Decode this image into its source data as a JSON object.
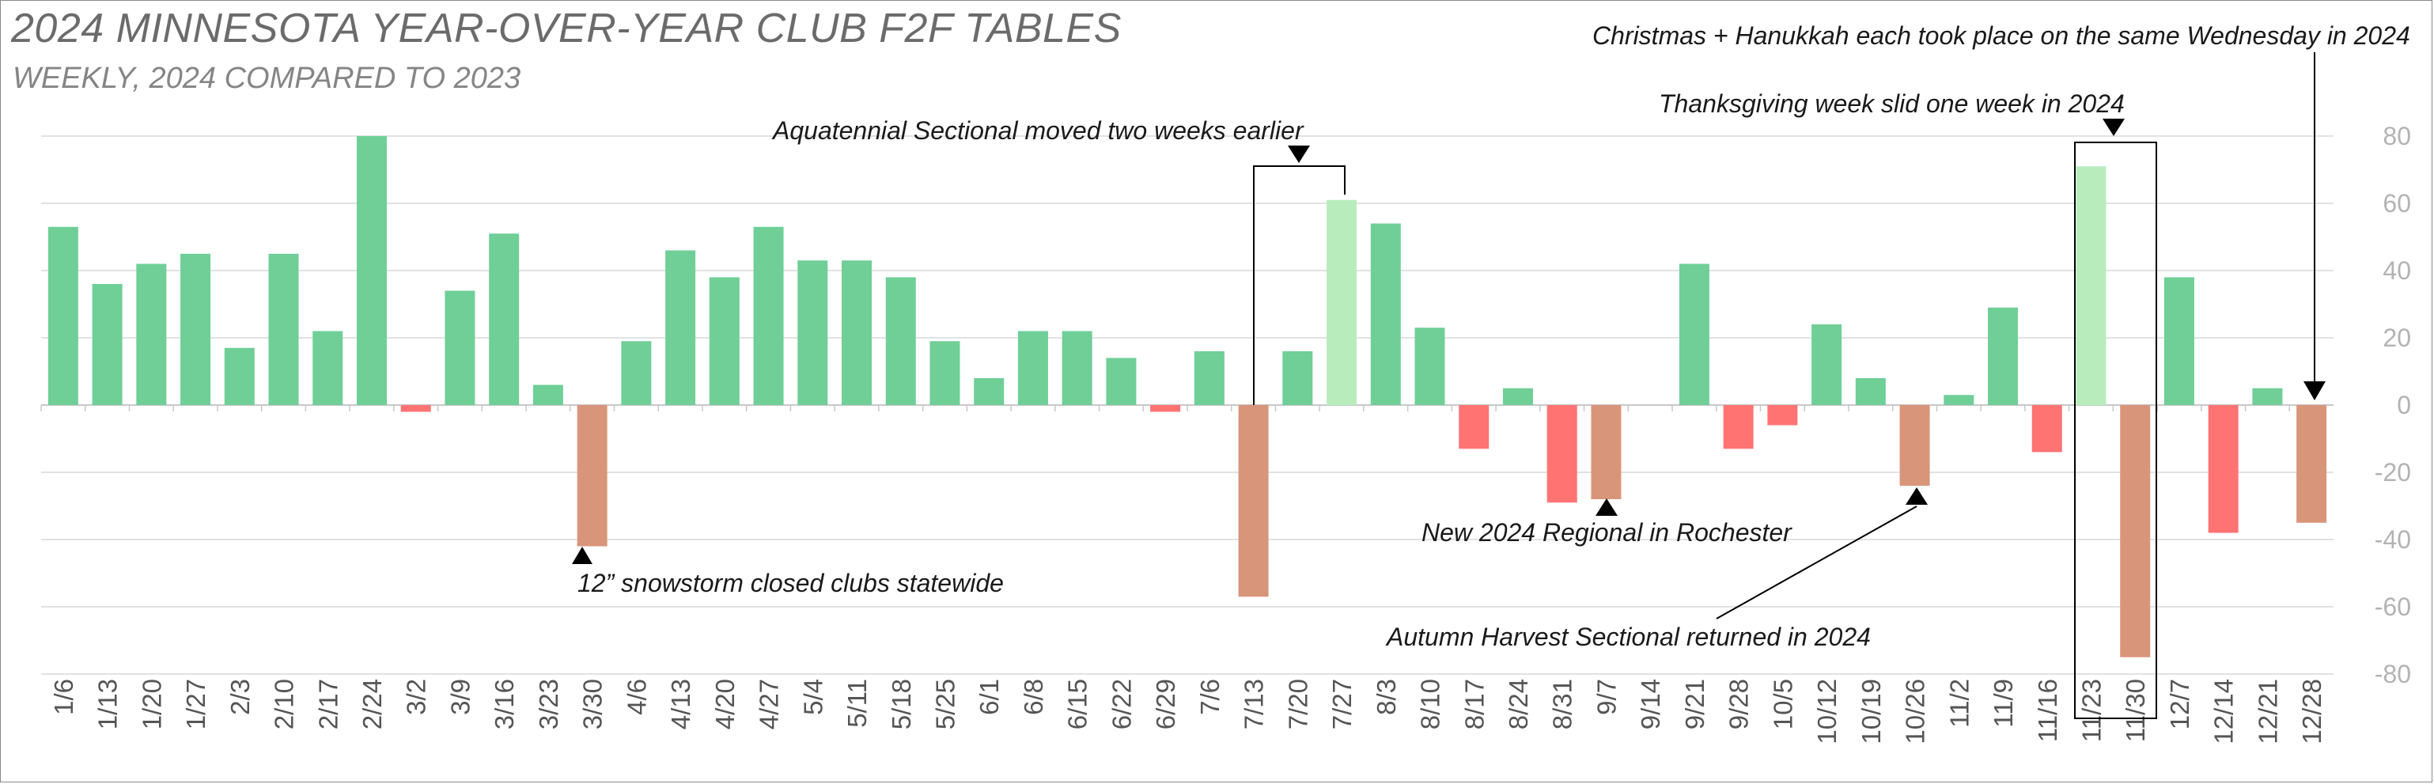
{
  "title": "2024 MINNESOTA YEAR-OVER-YEAR CLUB F2F TABLES",
  "subtitle": "WEEKLY, 2024 COMPARED TO 2023",
  "colors": {
    "positive": "#6fcf97",
    "negative": "#ff7373",
    "highlight_positive": "#b9ecbd",
    "highlight_negative": "#d9957a",
    "grid": "#d9d9d9",
    "axis_text": "#b3b3b3"
  },
  "chart_data": {
    "type": "bar",
    "title": "2024 MINNESOTA YEAR-OVER-YEAR CLUB F2F TABLES",
    "subtitle": "WEEKLY, 2024 COMPARED TO 2023",
    "xlabel": "",
    "ylabel": "",
    "ylim": [
      -80,
      80
    ],
    "yticks": [
      80,
      60,
      40,
      20,
      0,
      -20,
      -40,
      -60,
      -80
    ],
    "y_axis_side": "right",
    "grid": true,
    "categories": [
      "1/6",
      "1/13",
      "1/20",
      "1/27",
      "2/3",
      "2/10",
      "2/17",
      "2/24",
      "3/2",
      "3/9",
      "3/16",
      "3/23",
      "3/30",
      "4/6",
      "4/13",
      "4/20",
      "4/27",
      "5/4",
      "5/11",
      "5/18",
      "5/25",
      "6/1",
      "6/8",
      "6/15",
      "6/22",
      "6/29",
      "7/6",
      "7/13",
      "7/20",
      "7/27",
      "8/3",
      "8/10",
      "8/17",
      "8/24",
      "8/31",
      "9/7",
      "9/14",
      "9/21",
      "9/28",
      "10/5",
      "10/12",
      "10/19",
      "10/26",
      "11/2",
      "11/9",
      "11/16",
      "11/23",
      "11/30",
      "12/7",
      "12/14",
      "12/21",
      "12/28"
    ],
    "values": [
      53,
      36,
      42,
      45,
      17,
      45,
      22,
      80,
      -2,
      34,
      51,
      6,
      -42,
      19,
      46,
      38,
      53,
      43,
      43,
      38,
      19,
      8,
      22,
      22,
      14,
      -2,
      16,
      -57,
      16,
      61,
      54,
      23,
      -13,
      5,
      -29,
      -28,
      0,
      42,
      -13,
      -6,
      24,
      8,
      -24,
      3,
      29,
      -14,
      71,
      -75,
      38,
      -38,
      5,
      -35
    ],
    "highlighted": [
      "3/30",
      "7/13",
      "7/27",
      "9/7",
      "10/26",
      "11/23",
      "11/30",
      "12/28"
    ]
  },
  "annotations": [
    {
      "id": "snowstorm",
      "text": "12” snowstorm closed clubs statewide",
      "target": "3/30"
    },
    {
      "id": "aquatennial",
      "text": "Aquatennial Sectional moved two weeks earlier",
      "targets": [
        "7/13",
        "7/27"
      ]
    },
    {
      "id": "regional",
      "text": "New 2024 Regional in Rochester",
      "target": "9/7"
    },
    {
      "id": "harvest",
      "text": "Autumn Harvest Sectional returned in 2024",
      "target": "10/26"
    },
    {
      "id": "thanksgiving",
      "text": "Thanksgiving week slid one week in 2024",
      "targets": [
        "11/23",
        "11/30"
      ]
    },
    {
      "id": "holidays",
      "text": "Christmas + Hanukkah each took place on the same Wednesday in 2024",
      "target": "12/28"
    }
  ]
}
